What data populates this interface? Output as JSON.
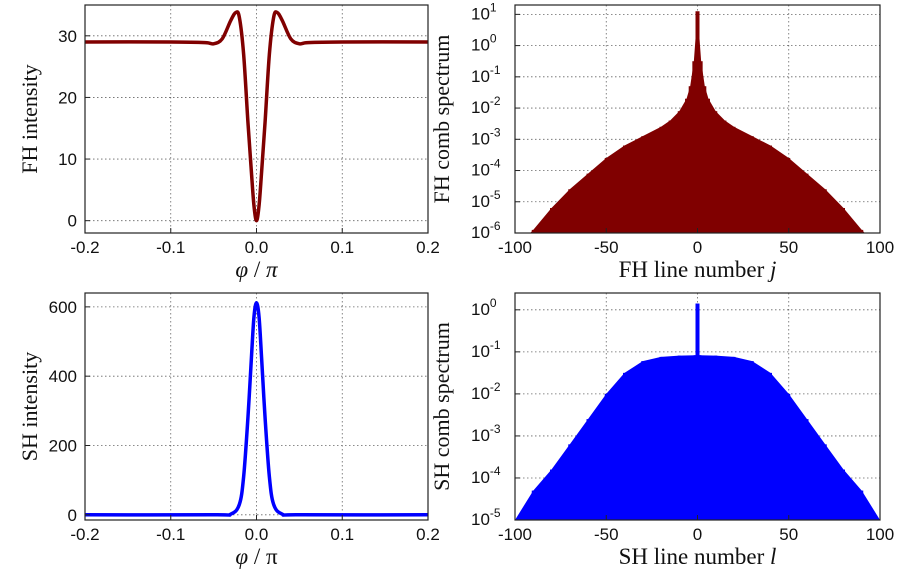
{
  "colors": {
    "fh": "#800000",
    "sh": "#0000ff"
  },
  "chart_data": [
    {
      "type": "line",
      "id": "fh-intensity",
      "ylabel": "FH intensity",
      "xlabel_parts": [
        [
          "φ",
          "i"
        ],
        [
          " / ",
          "n"
        ],
        [
          "π",
          "i"
        ]
      ],
      "xlim": [
        -0.2,
        0.2
      ],
      "ylim": [
        -2,
        35
      ],
      "xticks": [
        "-0.2",
        "-0.1",
        "0.0",
        "0.1",
        "0.2"
      ],
      "yticks": [
        "0",
        "10",
        "20",
        "30"
      ],
      "grid": true,
      "series": [
        {
          "color": "#800000",
          "x": [
            -0.2,
            -0.1,
            -0.06,
            -0.05,
            -0.04,
            -0.03,
            -0.024,
            -0.02,
            -0.015,
            -0.01,
            -0.006,
            -0.003,
            0.0,
            0.003,
            0.006,
            0.01,
            0.015,
            0.02,
            0.024,
            0.03,
            0.04,
            0.05,
            0.06,
            0.1,
            0.2
          ],
          "y": [
            29,
            29,
            28.9,
            28.7,
            29.5,
            32.5,
            33.8,
            33,
            27,
            16,
            8,
            2.5,
            0,
            2.5,
            8,
            16,
            27,
            33,
            33.8,
            32.5,
            29.5,
            28.7,
            28.9,
            29,
            29
          ]
        }
      ]
    },
    {
      "type": "bar",
      "id": "fh-spectrum",
      "ylabel_text": "FH comb spectrum",
      "xlabel_parts": [
        [
          "FH line number ",
          "n"
        ],
        [
          "j",
          "i"
        ]
      ],
      "xlim": [
        -100,
        100
      ],
      "ylim_log10": [
        -6,
        1.3
      ],
      "xticks": [
        "-100",
        "-50",
        "0",
        "50",
        "100"
      ],
      "ytick_exponents": [
        "1",
        "0",
        "-1",
        "-2",
        "-3",
        "-4",
        "-5",
        "-6"
      ],
      "grid": true,
      "series": [
        {
          "color": "#800000",
          "x": [
            -95,
            -90,
            -80,
            -70,
            -60,
            -50,
            -40,
            -30,
            -20,
            -15,
            -10,
            -6,
            -4,
            -2,
            0,
            2,
            4,
            6,
            10,
            15,
            20,
            30,
            40,
            50,
            60,
            70,
            80,
            90,
            95
          ],
          "y_log10": [
            -6.2,
            -5.9,
            -5.2,
            -4.6,
            -4.1,
            -3.6,
            -3.2,
            -2.9,
            -2.6,
            -2.4,
            -2.1,
            -1.7,
            -1.3,
            -0.5,
            1.1,
            -0.5,
            -1.3,
            -1.7,
            -2.1,
            -2.4,
            -2.6,
            -2.9,
            -3.2,
            -3.6,
            -4.1,
            -4.6,
            -5.2,
            -5.9,
            -6.2
          ]
        }
      ]
    },
    {
      "type": "line",
      "id": "sh-intensity",
      "ylabel": "SH intensity",
      "xlabel_parts": [
        [
          "φ",
          "i"
        ],
        [
          " / ",
          "n"
        ],
        [
          "π",
          "n"
        ]
      ],
      "xlim": [
        -0.2,
        0.2
      ],
      "ylim": [
        -15,
        640
      ],
      "xticks": [
        "-0.2",
        "-0.1",
        "0.0",
        "0.1",
        "0.2"
      ],
      "yticks": [
        "0",
        "200",
        "400",
        "600"
      ],
      "grid": true,
      "series": [
        {
          "color": "#0000ff",
          "x": [
            -0.2,
            -0.05,
            -0.03,
            -0.02,
            -0.015,
            -0.01,
            -0.006,
            -0.003,
            0.0,
            0.003,
            0.006,
            0.01,
            0.015,
            0.02,
            0.03,
            0.05,
            0.2
          ],
          "y": [
            0,
            0,
            2,
            30,
            110,
            280,
            450,
            570,
            612,
            570,
            450,
            280,
            110,
            30,
            2,
            0,
            0
          ]
        }
      ]
    },
    {
      "type": "bar",
      "id": "sh-spectrum",
      "ylabel_text": "SH comb spectrum",
      "xlabel_parts": [
        [
          "SH line number ",
          "n"
        ],
        [
          "l",
          "i"
        ]
      ],
      "xlim": [
        -100,
        100
      ],
      "ylim_log10": [
        -5,
        0.4
      ],
      "xticks": [
        "-100",
        "-50",
        "0",
        "50",
        "100"
      ],
      "ytick_exponents": [
        "0",
        "-1",
        "-2",
        "-3",
        "-4",
        "-5"
      ],
      "grid": true,
      "series": [
        {
          "color": "#0000ff",
          "x": [
            -100,
            -90,
            -80,
            -70,
            -60,
            -50,
            -40,
            -30,
            -20,
            -10,
            -1,
            0,
            1,
            10,
            20,
            30,
            40,
            50,
            60,
            70,
            80,
            90,
            100
          ],
          "y_log10": [
            -5,
            -4.3,
            -3.8,
            -3.2,
            -2.6,
            -2.0,
            -1.5,
            -1.22,
            -1.12,
            -1.09,
            -1.08,
            0.15,
            -1.08,
            -1.09,
            -1.12,
            -1.22,
            -1.5,
            -2.0,
            -2.6,
            -3.2,
            -3.8,
            -4.3,
            -5
          ]
        }
      ]
    }
  ]
}
